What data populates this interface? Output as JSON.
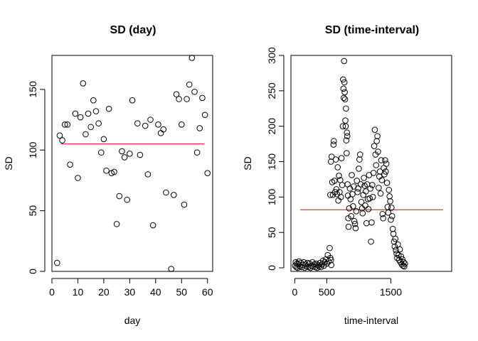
{
  "chart_data": [
    {
      "type": "scatter",
      "title": "SD (day)",
      "xlabel": "day",
      "ylabel": "SD",
      "xlim": [
        0,
        62
      ],
      "ylim": [
        0,
        178
      ],
      "x_ticks": [
        0,
        10,
        20,
        30,
        40,
        50,
        60
      ],
      "y_ticks": [
        0,
        50,
        100,
        150
      ],
      "grid": false,
      "hline": {
        "y": 105,
        "color": "#ff0000"
      },
      "points": [
        {
          "x": 2,
          "y": 7
        },
        {
          "x": 3,
          "y": 112
        },
        {
          "x": 4,
          "y": 108
        },
        {
          "x": 5,
          "y": 121
        },
        {
          "x": 6,
          "y": 121
        },
        {
          "x": 7,
          "y": 88
        },
        {
          "x": 9,
          "y": 130
        },
        {
          "x": 10,
          "y": 77
        },
        {
          "x": 11,
          "y": 127
        },
        {
          "x": 12,
          "y": 155
        },
        {
          "x": 13,
          "y": 113
        },
        {
          "x": 14,
          "y": 130
        },
        {
          "x": 15,
          "y": 119
        },
        {
          "x": 16,
          "y": 141
        },
        {
          "x": 17,
          "y": 132
        },
        {
          "x": 18,
          "y": 122
        },
        {
          "x": 19,
          "y": 98
        },
        {
          "x": 20,
          "y": 109
        },
        {
          "x": 21,
          "y": 83
        },
        {
          "x": 22,
          "y": 134
        },
        {
          "x": 23,
          "y": 81
        },
        {
          "x": 24,
          "y": 82
        },
        {
          "x": 25,
          "y": 39
        },
        {
          "x": 26,
          "y": 62
        },
        {
          "x": 27,
          "y": 99
        },
        {
          "x": 28,
          "y": 94
        },
        {
          "x": 29,
          "y": 59
        },
        {
          "x": 30,
          "y": 97
        },
        {
          "x": 31,
          "y": 141
        },
        {
          "x": 33,
          "y": 122
        },
        {
          "x": 34,
          "y": 96
        },
        {
          "x": 36,
          "y": 120
        },
        {
          "x": 37,
          "y": 80
        },
        {
          "x": 38,
          "y": 125
        },
        {
          "x": 39,
          "y": 38
        },
        {
          "x": 41,
          "y": 121
        },
        {
          "x": 42,
          "y": 114
        },
        {
          "x": 43,
          "y": 117
        },
        {
          "x": 44,
          "y": 65
        },
        {
          "x": 46,
          "y": 2
        },
        {
          "x": 47,
          "y": 63
        },
        {
          "x": 48,
          "y": 146
        },
        {
          "x": 49,
          "y": 142
        },
        {
          "x": 50,
          "y": 121
        },
        {
          "x": 51,
          "y": 55
        },
        {
          "x": 52,
          "y": 142
        },
        {
          "x": 53,
          "y": 154
        },
        {
          "x": 54,
          "y": 176
        },
        {
          "x": 55,
          "y": 148
        },
        {
          "x": 56,
          "y": 98
        },
        {
          "x": 57,
          "y": 118
        },
        {
          "x": 58,
          "y": 143
        },
        {
          "x": 59,
          "y": 129
        },
        {
          "x": 60,
          "y": 81
        }
      ]
    },
    {
      "type": "scatter",
      "title": "SD (time-interval)",
      "xlabel": "time-interval",
      "ylabel": "SD",
      "xlim": [
        -60,
        2450
      ],
      "ylim": [
        -5,
        300
      ],
      "x_ticks": [
        0,
        500,
        1500
      ],
      "y_ticks": [
        0,
        50,
        100,
        150,
        200,
        250,
        300
      ],
      "grid": false,
      "hline": {
        "y": 82,
        "color": "#ff0000"
      },
      "points": [
        {
          "x": 5,
          "y": 3
        },
        {
          "x": 15,
          "y": 8
        },
        {
          "x": 25,
          "y": 1
        },
        {
          "x": 35,
          "y": 6
        },
        {
          "x": 45,
          "y": 0
        },
        {
          "x": 55,
          "y": 5
        },
        {
          "x": 65,
          "y": 9
        },
        {
          "x": 80,
          "y": 2
        },
        {
          "x": 95,
          "y": 7
        },
        {
          "x": 110,
          "y": 1
        },
        {
          "x": 125,
          "y": 4
        },
        {
          "x": 140,
          "y": 8
        },
        {
          "x": 155,
          "y": 0
        },
        {
          "x": 170,
          "y": 5
        },
        {
          "x": 185,
          "y": 2
        },
        {
          "x": 200,
          "y": 7
        },
        {
          "x": 215,
          "y": 1
        },
        {
          "x": 230,
          "y": 6
        },
        {
          "x": 245,
          "y": 0
        },
        {
          "x": 260,
          "y": 3
        },
        {
          "x": 275,
          "y": 8
        },
        {
          "x": 290,
          "y": 2
        },
        {
          "x": 305,
          "y": 5
        },
        {
          "x": 320,
          "y": 1
        },
        {
          "x": 335,
          "y": 6
        },
        {
          "x": 350,
          "y": 0
        },
        {
          "x": 365,
          "y": 4
        },
        {
          "x": 380,
          "y": 2
        },
        {
          "x": 395,
          "y": 7
        },
        {
          "x": 410,
          "y": 1
        },
        {
          "x": 425,
          "y": 5
        },
        {
          "x": 440,
          "y": 10
        },
        {
          "x": 455,
          "y": 3
        },
        {
          "x": 470,
          "y": 8
        },
        {
          "x": 485,
          "y": 12
        },
        {
          "x": 500,
          "y": 6
        },
        {
          "x": 515,
          "y": 18
        },
        {
          "x": 530,
          "y": 9
        },
        {
          "x": 545,
          "y": 28
        },
        {
          "x": 555,
          "y": 14
        },
        {
          "x": 565,
          "y": 11
        },
        {
          "x": 570,
          "y": 4
        },
        {
          "x": 555,
          "y": 103
        },
        {
          "x": 565,
          "y": 150
        },
        {
          "x": 575,
          "y": 157
        },
        {
          "x": 585,
          "y": 121
        },
        {
          "x": 595,
          "y": 103
        },
        {
          "x": 605,
          "y": 174
        },
        {
          "x": 610,
          "y": 179
        },
        {
          "x": 620,
          "y": 123
        },
        {
          "x": 630,
          "y": 107
        },
        {
          "x": 640,
          "y": 153
        },
        {
          "x": 650,
          "y": 111
        },
        {
          "x": 660,
          "y": 104
        },
        {
          "x": 670,
          "y": 142
        },
        {
          "x": 680,
          "y": 95
        },
        {
          "x": 690,
          "y": 130
        },
        {
          "x": 700,
          "y": 107
        },
        {
          "x": 710,
          "y": 124
        },
        {
          "x": 720,
          "y": 100
        },
        {
          "x": 730,
          "y": 155
        },
        {
          "x": 740,
          "y": 117
        },
        {
          "x": 750,
          "y": 200
        },
        {
          "x": 755,
          "y": 266
        },
        {
          "x": 760,
          "y": 253
        },
        {
          "x": 765,
          "y": 240
        },
        {
          "x": 770,
          "y": 292
        },
        {
          "x": 775,
          "y": 262
        },
        {
          "x": 780,
          "y": 248
        },
        {
          "x": 785,
          "y": 238
        },
        {
          "x": 790,
          "y": 208
        },
        {
          "x": 795,
          "y": 200
        },
        {
          "x": 800,
          "y": 225
        },
        {
          "x": 805,
          "y": 180
        },
        {
          "x": 810,
          "y": 162
        },
        {
          "x": 815,
          "y": 191
        },
        {
          "x": 820,
          "y": 186
        },
        {
          "x": 825,
          "y": 118
        },
        {
          "x": 830,
          "y": 102
        },
        {
          "x": 835,
          "y": 70
        },
        {
          "x": 840,
          "y": 58
        },
        {
          "x": 850,
          "y": 84
        },
        {
          "x": 860,
          "y": 112
        },
        {
          "x": 870,
          "y": 97
        },
        {
          "x": 880,
          "y": 73
        },
        {
          "x": 890,
          "y": 131
        },
        {
          "x": 900,
          "y": 104
        },
        {
          "x": 910,
          "y": 87
        },
        {
          "x": 920,
          "y": 115
        },
        {
          "x": 930,
          "y": 66
        },
        {
          "x": 940,
          "y": 62
        },
        {
          "x": 950,
          "y": 56
        },
        {
          "x": 960,
          "y": 80
        },
        {
          "x": 970,
          "y": 123
        },
        {
          "x": 980,
          "y": 107
        },
        {
          "x": 990,
          "y": 112
        },
        {
          "x": 1000,
          "y": 140
        },
        {
          "x": 1010,
          "y": 153
        },
        {
          "x": 1020,
          "y": 160
        },
        {
          "x": 1030,
          "y": 118
        },
        {
          "x": 1040,
          "y": 93
        },
        {
          "x": 1050,
          "y": 84
        },
        {
          "x": 1060,
          "y": 77
        },
        {
          "x": 1070,
          "y": 103
        },
        {
          "x": 1080,
          "y": 127
        },
        {
          "x": 1090,
          "y": 116
        },
        {
          "x": 1100,
          "y": 88
        },
        {
          "x": 1110,
          "y": 108
        },
        {
          "x": 1120,
          "y": 63
        },
        {
          "x": 1130,
          "y": 118
        },
        {
          "x": 1140,
          "y": 97
        },
        {
          "x": 1150,
          "y": 83
        },
        {
          "x": 1160,
          "y": 131
        },
        {
          "x": 1170,
          "y": 98
        },
        {
          "x": 1180,
          "y": 112
        },
        {
          "x": 1190,
          "y": 37
        },
        {
          "x": 1200,
          "y": 64
        },
        {
          "x": 1210,
          "y": 117
        },
        {
          "x": 1220,
          "y": 100
        },
        {
          "x": 1230,
          "y": 134
        },
        {
          "x": 1240,
          "y": 172
        },
        {
          "x": 1250,
          "y": 195
        },
        {
          "x": 1260,
          "y": 160
        },
        {
          "x": 1270,
          "y": 145
        },
        {
          "x": 1280,
          "y": 179
        },
        {
          "x": 1290,
          "y": 186
        },
        {
          "x": 1300,
          "y": 164
        },
        {
          "x": 1310,
          "y": 113
        },
        {
          "x": 1320,
          "y": 129
        },
        {
          "x": 1330,
          "y": 136
        },
        {
          "x": 1340,
          "y": 105
        },
        {
          "x": 1350,
          "y": 152
        },
        {
          "x": 1360,
          "y": 124
        },
        {
          "x": 1370,
          "y": 76
        },
        {
          "x": 1380,
          "y": 70
        },
        {
          "x": 1390,
          "y": 141
        },
        {
          "x": 1400,
          "y": 132
        },
        {
          "x": 1410,
          "y": 152
        },
        {
          "x": 1420,
          "y": 136
        },
        {
          "x": 1430,
          "y": 147
        },
        {
          "x": 1440,
          "y": 120
        },
        {
          "x": 1450,
          "y": 86
        },
        {
          "x": 1460,
          "y": 78
        },
        {
          "x": 1470,
          "y": 110
        },
        {
          "x": 1480,
          "y": 101
        },
        {
          "x": 1490,
          "y": 94
        },
        {
          "x": 1500,
          "y": 68
        },
        {
          "x": 1510,
          "y": 85
        },
        {
          "x": 1520,
          "y": 73
        },
        {
          "x": 1530,
          "y": 55
        },
        {
          "x": 1540,
          "y": 48
        },
        {
          "x": 1550,
          "y": 37
        },
        {
          "x": 1560,
          "y": 30
        },
        {
          "x": 1570,
          "y": 41
        },
        {
          "x": 1580,
          "y": 25
        },
        {
          "x": 1590,
          "y": 20
        },
        {
          "x": 1600,
          "y": 14
        },
        {
          "x": 1610,
          "y": 33
        },
        {
          "x": 1620,
          "y": 18
        },
        {
          "x": 1630,
          "y": 11
        },
        {
          "x": 1640,
          "y": 26
        },
        {
          "x": 1650,
          "y": 8
        },
        {
          "x": 1660,
          "y": 16
        },
        {
          "x": 1670,
          "y": 5
        },
        {
          "x": 1680,
          "y": 12
        },
        {
          "x": 1690,
          "y": 3
        },
        {
          "x": 1700,
          "y": 8
        },
        {
          "x": 1710,
          "y": 2
        },
        {
          "x": 1720,
          "y": 6
        }
      ]
    }
  ]
}
